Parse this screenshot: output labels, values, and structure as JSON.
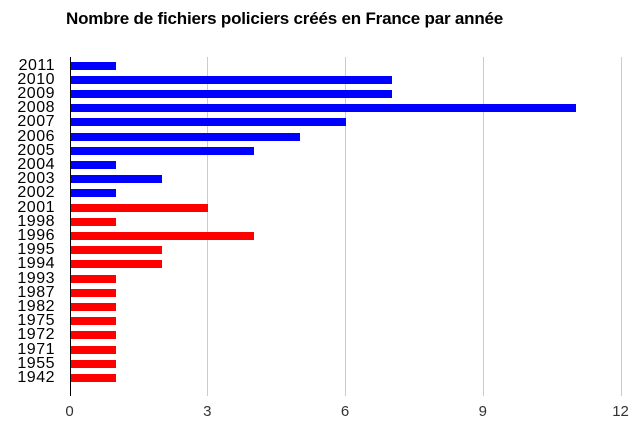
{
  "chart_data": {
    "type": "bar",
    "orientation": "horizontal",
    "title": "Nombre de fichiers policiers créés en France par année",
    "categories": [
      "2011",
      "2010",
      "2009",
      "2008",
      "2007",
      "2006",
      "2005",
      "2004",
      "2003",
      "2002",
      "2001",
      "1998",
      "1996",
      "1995",
      "1994",
      "1993",
      "1987",
      "1982",
      "1975",
      "1972",
      "1971",
      "1955",
      "1942"
    ],
    "values": [
      1,
      7,
      7,
      11,
      6,
      5,
      4,
      1,
      2,
      1,
      3,
      1,
      4,
      2,
      2,
      1,
      1,
      1,
      1,
      1,
      1,
      1,
      1
    ],
    "bar_colors": [
      "#0000ff",
      "#0000ff",
      "#0000ff",
      "#0000ff",
      "#0000ff",
      "#0000ff",
      "#0000ff",
      "#0000ff",
      "#0000ff",
      "#0000ff",
      "#ff0000",
      "#ff0000",
      "#ff0000",
      "#ff0000",
      "#ff0000",
      "#ff0000",
      "#ff0000",
      "#ff0000",
      "#ff0000",
      "#ff0000",
      "#ff0000",
      "#ff0000",
      "#ff0000"
    ],
    "xlabel": "",
    "ylabel": "",
    "xlim": [
      0,
      12
    ],
    "xticks": [
      0,
      3,
      6,
      9,
      12
    ],
    "grid": true,
    "legend": "none",
    "colors": {
      "recent_years_blue": "#0000ff",
      "older_years_red": "#ff0000",
      "gridline": "#cccccc",
      "axis": "#000000",
      "title_text": "#000000",
      "tick_text": "#333333",
      "background": "#ffffff"
    }
  }
}
